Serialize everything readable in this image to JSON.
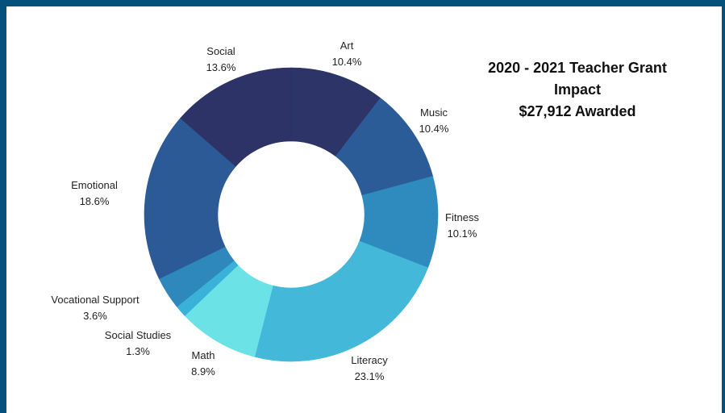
{
  "chart_data": {
    "type": "pie",
    "title_lines": [
      "2020 - 2021 Teacher Grant",
      "Impact",
      "$27,912 Awarded"
    ],
    "slices": [
      {
        "label": "Art",
        "value": 10.4,
        "value_label": "10.4%",
        "color": "#2d3467"
      },
      {
        "label": "Music",
        "value": 10.4,
        "value_label": "10.4%",
        "color": "#2c5c98"
      },
      {
        "label": "Fitness",
        "value": 10.1,
        "value_label": "10.1%",
        "color": "#2f8bbe"
      },
      {
        "label": "Literacy",
        "value": 23.1,
        "value_label": "23.1%",
        "color": "#44b8d8"
      },
      {
        "label": "Math",
        "value": 8.9,
        "value_label": "8.9%",
        "color": "#6ae2e6"
      },
      {
        "label": "Social Studies",
        "value": 1.3,
        "value_label": "1.3%",
        "color": "#3ab1d8"
      },
      {
        "label": "Vocational Support",
        "value": 3.6,
        "value_label": "3.6%",
        "color": "#2e88bb"
      },
      {
        "label": "Emotional",
        "value": 18.6,
        "value_label": "18.6%",
        "color": "#2c5a97"
      },
      {
        "label": "Social",
        "value": 13.6,
        "value_label": "13.6%",
        "color": "#2d3366"
      }
    ]
  },
  "colors": {
    "frame": "#04527c",
    "background": "#ffffff"
  }
}
